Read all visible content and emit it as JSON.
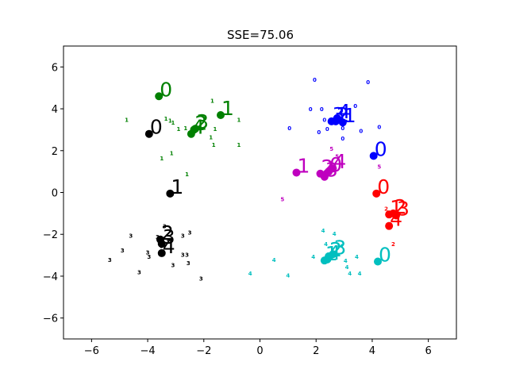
{
  "chart_data": {
    "type": "scatter",
    "title": "SSE=75.06",
    "xlim": [
      -7,
      7
    ],
    "ylim": [
      -7,
      7
    ],
    "xticks": [
      {
        "value": -6,
        "label": "−6"
      },
      {
        "value": -4,
        "label": "−4"
      },
      {
        "value": -2,
        "label": "−2"
      },
      0,
      2,
      4,
      6
    ],
    "yticks": [
      {
        "value": -6,
        "label": "−6"
      },
      {
        "value": -4,
        "label": "−4"
      },
      {
        "value": -2,
        "label": "−2"
      },
      0,
      2,
      4,
      6
    ],
    "series": [
      {
        "color": "#000000",
        "x": [
          -3.4,
          -4.6,
          -4.9,
          -5.35,
          -4.0,
          -3.95,
          -4.3,
          -3.1,
          -2.75,
          -2.5,
          -2.75,
          -2.6,
          -2.55,
          -2.1,
          -3.65,
          -3.3,
          -3.5
        ],
        "y": [
          -1.6,
          -2.05,
          -2.75,
          -3.2,
          -2.85,
          -3.05,
          -3.8,
          -3.45,
          -2.05,
          -1.9,
          -2.95,
          -2.95,
          -3.35,
          -4.1,
          -2.1,
          -2.3,
          -2.55
        ],
        "labels": [
          "3",
          "3",
          "3",
          "3",
          "3",
          "3",
          "3",
          "3",
          "3",
          "3",
          "3",
          "3",
          "3",
          "3",
          "3",
          "3",
          "3"
        ],
        "centroid_x": [
          -3.95,
          -3.2,
          -3.55,
          -3.5,
          -3.5
        ],
        "centroid_y": [
          2.8,
          -0.05,
          -2.25,
          -2.45,
          -2.9
        ],
        "centroid_labels": [
          "0",
          "1",
          "2",
          "3",
          "4"
        ]
      },
      {
        "color": "#008000",
        "x": [
          -4.75,
          -3.35,
          -3.2,
          -3.1,
          -2.9,
          -2.65,
          -1.7,
          -1.6,
          -1.75,
          -1.65,
          -0.75,
          -0.75,
          -3.15,
          -3.5,
          -2.6
        ],
        "y": [
          3.5,
          3.55,
          3.45,
          3.35,
          3.05,
          3.1,
          4.4,
          3.05,
          2.65,
          2.3,
          3.5,
          2.3,
          1.9,
          1.65,
          0.9
        ],
        "labels": [
          "1",
          "1",
          "1",
          "1",
          "1",
          "1",
          "1",
          "1",
          "1",
          "1",
          "1",
          "1",
          "1",
          "1",
          "1"
        ],
        "centroid_x": [
          -3.6,
          -1.4,
          -2.35,
          -2.3,
          -2.45
        ],
        "centroid_y": [
          4.6,
          3.7,
          3.0,
          3.05,
          2.8
        ],
        "centroid_labels": [
          "0",
          "1",
          "2",
          "3",
          "4"
        ]
      },
      {
        "color": "#0000ff",
        "x": [
          1.95,
          3.85,
          1.8,
          2.2,
          3.4,
          1.05,
          2.3,
          2.4,
          2.1,
          2.95,
          3.6,
          4.25,
          2.95
        ],
        "y": [
          5.4,
          5.3,
          4.0,
          4.0,
          4.15,
          3.1,
          3.5,
          3.05,
          2.9,
          3.1,
          2.95,
          3.15,
          2.6
        ],
        "labels": [
          "0",
          "0",
          "0",
          "0",
          "0",
          "0",
          "0",
          "0",
          "0",
          "0",
          "0",
          "0",
          "0"
        ],
        "centroid_x": [
          4.05,
          2.95,
          2.7,
          2.55,
          2.75
        ],
        "centroid_y": [
          1.75,
          3.35,
          3.4,
          3.4,
          3.55
        ],
        "centroid_labels": [
          "0",
          "1",
          "2",
          "3",
          "4"
        ]
      },
      {
        "color": "#bf00bf",
        "x": [
          2.55,
          4.25,
          0.8,
          2.75
        ],
        "y": [
          2.1,
          1.25,
          -0.3,
          1.75
        ],
        "labels": [
          "5",
          "5",
          "5",
          "5"
        ],
        "centroid_x": [
          2.45,
          1.3,
          2.15,
          2.3,
          2.6
        ],
        "centroid_y": [
          1.0,
          0.95,
          0.9,
          0.75,
          1.15
        ],
        "centroid_labels": [
          "0",
          "1",
          "2",
          "3",
          "4"
        ]
      },
      {
        "color": "#ff0000",
        "x": [
          4.5,
          4.75
        ],
        "y": [
          -0.75,
          -2.45
        ],
        "labels": [
          "2",
          "2"
        ],
        "centroid_x": [
          4.15,
          4.6,
          4.75,
          4.85,
          4.6
        ],
        "centroid_y": [
          -0.05,
          -1.05,
          -1.0,
          -1.1,
          -1.6
        ],
        "centroid_labels": [
          "0",
          "1",
          "2",
          "3",
          "4"
        ]
      },
      {
        "color": "#00bfbf",
        "x": [
          2.25,
          2.65,
          2.35,
          2.9,
          1.9,
          0.5,
          3.05,
          3.45,
          3.1,
          3.2,
          3.55,
          -0.35,
          1.0,
          2.6
        ],
        "y": [
          -1.8,
          -1.95,
          -2.45,
          -2.55,
          -3.05,
          -3.2,
          -3.25,
          -3.05,
          -3.55,
          -3.85,
          -3.85,
          -3.85,
          -3.95,
          -2.95
        ],
        "labels": [
          "4",
          "4",
          "4",
          "4",
          "4",
          "4",
          "4",
          "4",
          "4",
          "4",
          "4",
          "4",
          "4",
          "4"
        ],
        "centroid_x": [
          4.2,
          2.3,
          2.45,
          2.6,
          2.4
        ],
        "centroid_y": [
          -3.3,
          -3.25,
          -3.05,
          -2.95,
          -3.2
        ],
        "centroid_labels": [
          "0",
          "1",
          "2",
          "3",
          "4"
        ]
      }
    ]
  }
}
